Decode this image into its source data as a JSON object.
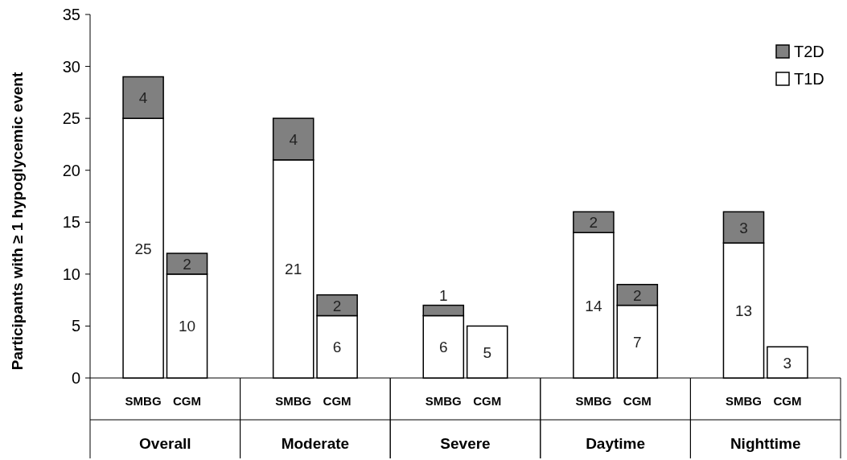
{
  "chart_data": [
    {
      "type": "bar",
      "stacked": true,
      "ylabel": "Participants with ≥ 1 hypoglycemic event",
      "xlabel": "Overall",
      "categories": [
        "SMBG",
        "CGM"
      ],
      "series": [
        {
          "color": "#ffffff",
          "values": [
            25,
            10
          ]
        },
        {
          "color": "#808080",
          "values": [
            4,
            2
          ]
        }
      ],
      "ylim": [
        0,
        35
      ],
      "yticks": [
        0,
        5,
        10,
        15,
        20,
        25,
        30,
        35
      ],
      "data_labels": true
    },
    {
      "type": "bar",
      "stacked": true,
      "xlabel": "Moderate",
      "categories": [
        "SMBG",
        "CGM"
      ],
      "series": [
        {
          "color": "#ffffff",
          "values": [
            21,
            6
          ]
        },
        {
          "color": "#808080",
          "values": [
            4,
            2
          ]
        }
      ],
      "ylim": [
        0,
        35
      ],
      "tick_labels": "x",
      "data_labels": true
    },
    {
      "type": "bar",
      "stacked": true,
      "xlabel": "Severe",
      "categories": [
        "SMBG",
        "CGM"
      ],
      "series": [
        {
          "color": "#ffffff",
          "values": [
            6,
            5
          ]
        },
        {
          "color": "#808080",
          "values": [
            1,
            null
          ]
        }
      ],
      "ylim": [
        0,
        35
      ],
      "tick_labels": "x",
      "data_labels": true
    },
    {
      "type": "bar",
      "stacked": true,
      "xlabel": "Daytime",
      "categories": [
        "SMBG",
        "CGM"
      ],
      "series": [
        {
          "color": "#ffffff",
          "values": [
            14,
            7
          ]
        },
        {
          "color": "#808080",
          "values": [
            2,
            2
          ]
        }
      ],
      "ylim": [
        0,
        35
      ],
      "tick_labels": "x",
      "data_labels": true
    },
    {
      "type": "bar",
      "stacked": true,
      "xlabel": "Nighttime",
      "categories": [
        "SMBG",
        "CGM"
      ],
      "series": [
        {
          "name": "T1D",
          "color": "#ffffff",
          "values": [
            13,
            3
          ]
        },
        {
          "name": "T2D",
          "color": "#808080",
          "values": [
            3,
            null
          ]
        }
      ],
      "ylim": [
        0,
        35
      ],
      "tick_labels": "x",
      "data_labels": true,
      "legend": "top right"
    }
  ]
}
